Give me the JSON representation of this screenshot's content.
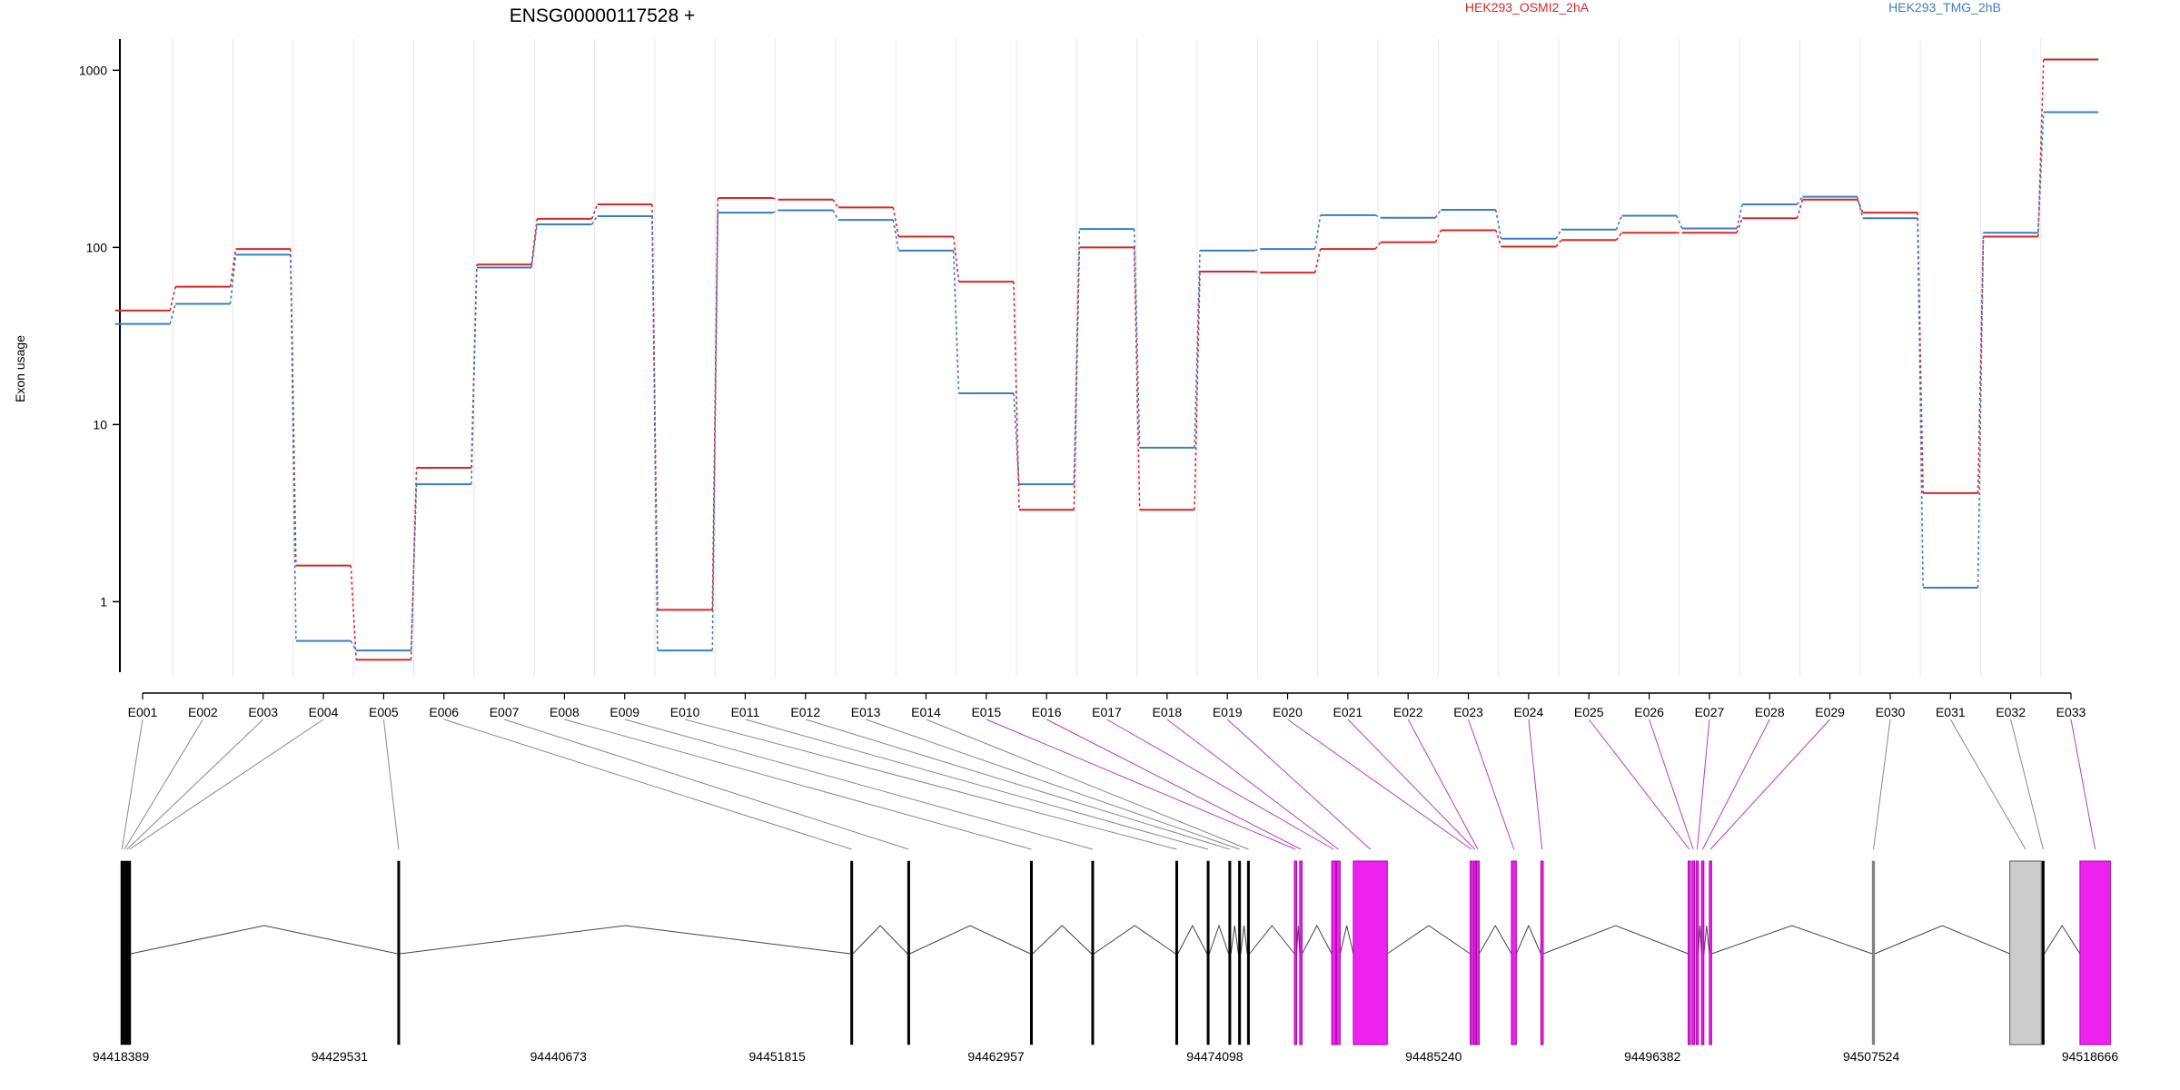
{
  "chart_data": {
    "type": "line",
    "title": "ENSG00000117528 +",
    "ylabel": "Exon usage",
    "xlabel": "",
    "y_scale": "log",
    "ylim": [
      0.4,
      1500
    ],
    "y_ticks": [
      1,
      10,
      100,
      1000
    ],
    "grid": "vertical lines at exon boundaries",
    "legend_placement": "top",
    "categories": [
      "E001",
      "E002",
      "E003",
      "E004",
      "E005",
      "E006",
      "E007",
      "E008",
      "E009",
      "E010",
      "E011",
      "E012",
      "E013",
      "E014",
      "E015",
      "E016",
      "E017",
      "E018",
      "E019",
      "E020",
      "E021",
      "E022",
      "E023",
      "E024",
      "E025",
      "E026",
      "E027",
      "E028",
      "E029",
      "E030",
      "E031",
      "E032",
      "E033"
    ],
    "series": [
      {
        "name": "HEK293_OSMI2_2hA",
        "color": "#d62728",
        "values": [
          44,
          60,
          98,
          1.6,
          0.47,
          5.7,
          80,
          145,
          175,
          0.9,
          190,
          186,
          168,
          115,
          64,
          3.3,
          100,
          3.3,
          73,
          72,
          98,
          107,
          125,
          101,
          110,
          121,
          121,
          146,
          186,
          157,
          4.1,
          115,
          1150
        ]
      },
      {
        "name": "HEK293_TMG_2hB",
        "color": "#3a7dc0",
        "values": [
          37,
          48,
          91,
          0.6,
          0.53,
          4.6,
          77,
          135,
          150,
          0.53,
          157,
          162,
          143,
          96,
          15,
          4.6,
          127,
          7.4,
          96,
          98,
          152,
          147,
          163,
          112,
          126,
          151,
          128,
          175,
          193,
          146,
          1.2,
          121,
          580
        ]
      }
    ],
    "gene_model": {
      "coordinate_ticks": [
        "94418389",
        "94429531",
        "94440673",
        "94451815",
        "94462957",
        "94474098",
        "94485240",
        "94496382",
        "94507524",
        "94518666"
      ],
      "exons": [
        {
          "label": "E001",
          "start": 94418389,
          "end": 94418450,
          "color": "#000000"
        },
        {
          "label": "E002",
          "start": 94418520,
          "end": 94418580,
          "color": "#000000"
        },
        {
          "label": "E003",
          "start": 94418650,
          "end": 94418700,
          "color": "#000000"
        },
        {
          "label": "E004",
          "start": 94418780,
          "end": 94418830,
          "color": "#000000"
        },
        {
          "label": "E005",
          "start": 94432480,
          "end": 94432550,
          "color": "#000000"
        },
        {
          "label": "E006",
          "start": 94455550,
          "end": 94455620,
          "color": "#000000"
        },
        {
          "label": "E007",
          "start": 94458450,
          "end": 94458520,
          "color": "#000000"
        },
        {
          "label": "E008",
          "start": 94464700,
          "end": 94464780,
          "color": "#000000"
        },
        {
          "label": "E009",
          "start": 94467820,
          "end": 94467900,
          "color": "#000000"
        },
        {
          "label": "E010",
          "start": 94472100,
          "end": 94472170,
          "color": "#000000"
        },
        {
          "label": "E011",
          "start": 94473700,
          "end": 94473780,
          "color": "#000000"
        },
        {
          "label": "E012",
          "start": 94474800,
          "end": 94474870,
          "color": "#000000"
        },
        {
          "label": "E013",
          "start": 94475300,
          "end": 94475380,
          "color": "#000000"
        },
        {
          "label": "E014",
          "start": 94475750,
          "end": 94475830,
          "color": "#000000"
        },
        {
          "label": "E015",
          "start": 94478150,
          "end": 94478260,
          "color": "#ee22ee"
        },
        {
          "label": "E016",
          "start": 94478420,
          "end": 94478540,
          "color": "#ee22ee"
        },
        {
          "label": "E017",
          "start": 94480050,
          "end": 94480250,
          "color": "#ee22ee"
        },
        {
          "label": "E018",
          "start": 94480300,
          "end": 94480480,
          "color": "#ee22ee"
        },
        {
          "label": "E019",
          "start": 94481150,
          "end": 94482880,
          "color": "#ee22ee"
        },
        {
          "label": "E020",
          "start": 94487100,
          "end": 94487220,
          "color": "#ee22ee"
        },
        {
          "label": "E021",
          "start": 94487280,
          "end": 94487380,
          "color": "#ee22ee"
        },
        {
          "label": "E022",
          "start": 94487420,
          "end": 94487560,
          "color": "#ee22ee"
        },
        {
          "label": "E023",
          "start": 94489200,
          "end": 94489450,
          "color": "#ee22ee"
        },
        {
          "label": "E024",
          "start": 94490700,
          "end": 94490820,
          "color": "#ee22ee"
        },
        {
          "label": "E025",
          "start": 94498200,
          "end": 94498320,
          "color": "#ee22ee"
        },
        {
          "label": "E026",
          "start": 94498400,
          "end": 94498520,
          "color": "#ee22ee"
        },
        {
          "label": "E027",
          "start": 94498600,
          "end": 94498720,
          "color": "#ee22ee"
        },
        {
          "label": "E028",
          "start": 94498880,
          "end": 94499000,
          "color": "#ee22ee"
        },
        {
          "label": "E029",
          "start": 94499280,
          "end": 94499380,
          "color": "#ee22ee"
        },
        {
          "label": "E030",
          "start": 94507570,
          "end": 94507700,
          "color": "#808080"
        },
        {
          "label": "E031",
          "start": 94514580,
          "end": 94516180,
          "color": "#cccccc"
        },
        {
          "label": "E032",
          "start": 94516220,
          "end": 94516330,
          "color": "#000000"
        },
        {
          "label": "E033",
          "start": 94518150,
          "end": 94519700,
          "color": "#ee22ee"
        }
      ]
    }
  }
}
